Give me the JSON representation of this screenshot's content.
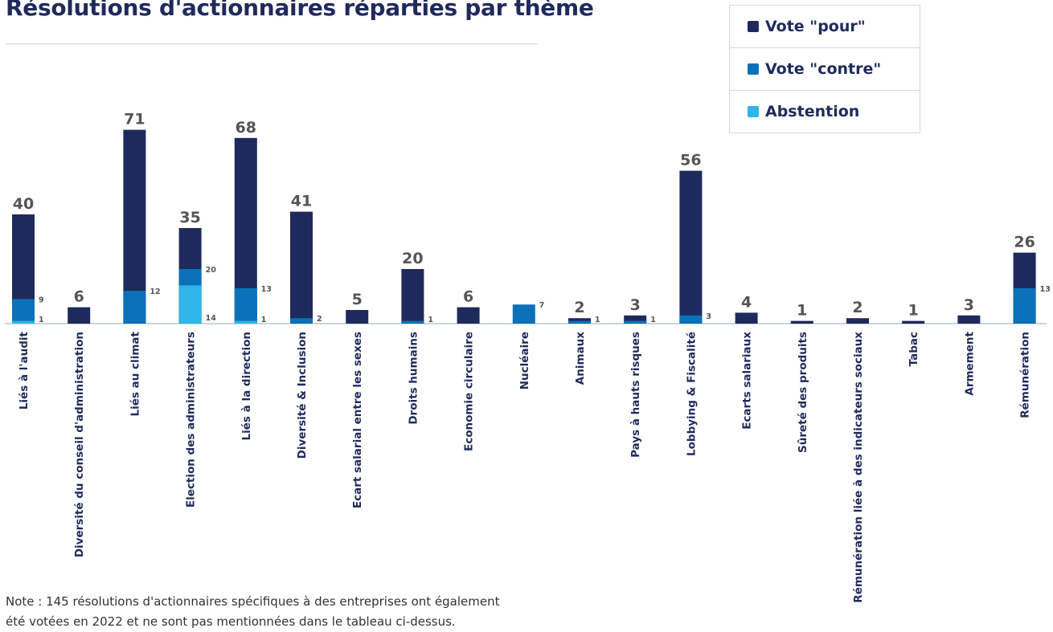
{
  "title": "Résolutions d'actionnaires réparties par thème",
  "legend": {
    "items": [
      {
        "label": "Vote \"pour\"",
        "color": "#1f2a5c"
      },
      {
        "label": "Vote \"contre\"",
        "color": "#0b72b9"
      },
      {
        "label": "Abstention",
        "color": "#2fb5e8"
      }
    ]
  },
  "note": {
    "line1": "Note : 145 résolutions d'actionnaires spécifiques à des entreprises ont également",
    "line2": "été votées en 2022 et ne sont pas mentionnées dans le tableau ci-dessus."
  },
  "chart_data": {
    "type": "bar",
    "stacked": true,
    "categories": [
      "Liés à l'audit",
      "Diversité du conseil d'administration",
      "Liés au climat",
      "Election des administrateurs",
      "Liés à la direction",
      "Diversité & Inclusion",
      "Ecart salarial entre les sexes",
      "Droits humains",
      "Economie circulaire",
      "Nucléaire",
      "Animaux",
      "Pays à hauts risques",
      "Lobbying & Fiscalité",
      "Ecarts salariaux",
      "Sûreté des produits",
      "Rémunération liée à des indicateurs sociaux",
      "Tabac",
      "Armement",
      "Rémunération"
    ],
    "series": [
      {
        "name": "Vote \"pour\"",
        "color": "#1f2a5c",
        "values": [
          40,
          6,
          71,
          35,
          68,
          41,
          5,
          20,
          6,
          null,
          2,
          3,
          56,
          4,
          1,
          2,
          1,
          3,
          26
        ]
      },
      {
        "name": "Vote \"contre\"",
        "color": "#0b72b9",
        "values": [
          9,
          null,
          12,
          20,
          13,
          2,
          null,
          1,
          null,
          7,
          1,
          1,
          3,
          null,
          null,
          null,
          null,
          null,
          13
        ]
      },
      {
        "name": "Abstention",
        "color": "#2fb5e8",
        "values": [
          1,
          null,
          null,
          14,
          1,
          null,
          null,
          null,
          null,
          null,
          null,
          null,
          null,
          null,
          null,
          null,
          null,
          null,
          null
        ]
      }
    ],
    "label_colors": {
      "total": "#555555",
      "side": "#555555",
      "category": "#1f2a5c"
    },
    "baseline_color": "#aebccd"
  }
}
